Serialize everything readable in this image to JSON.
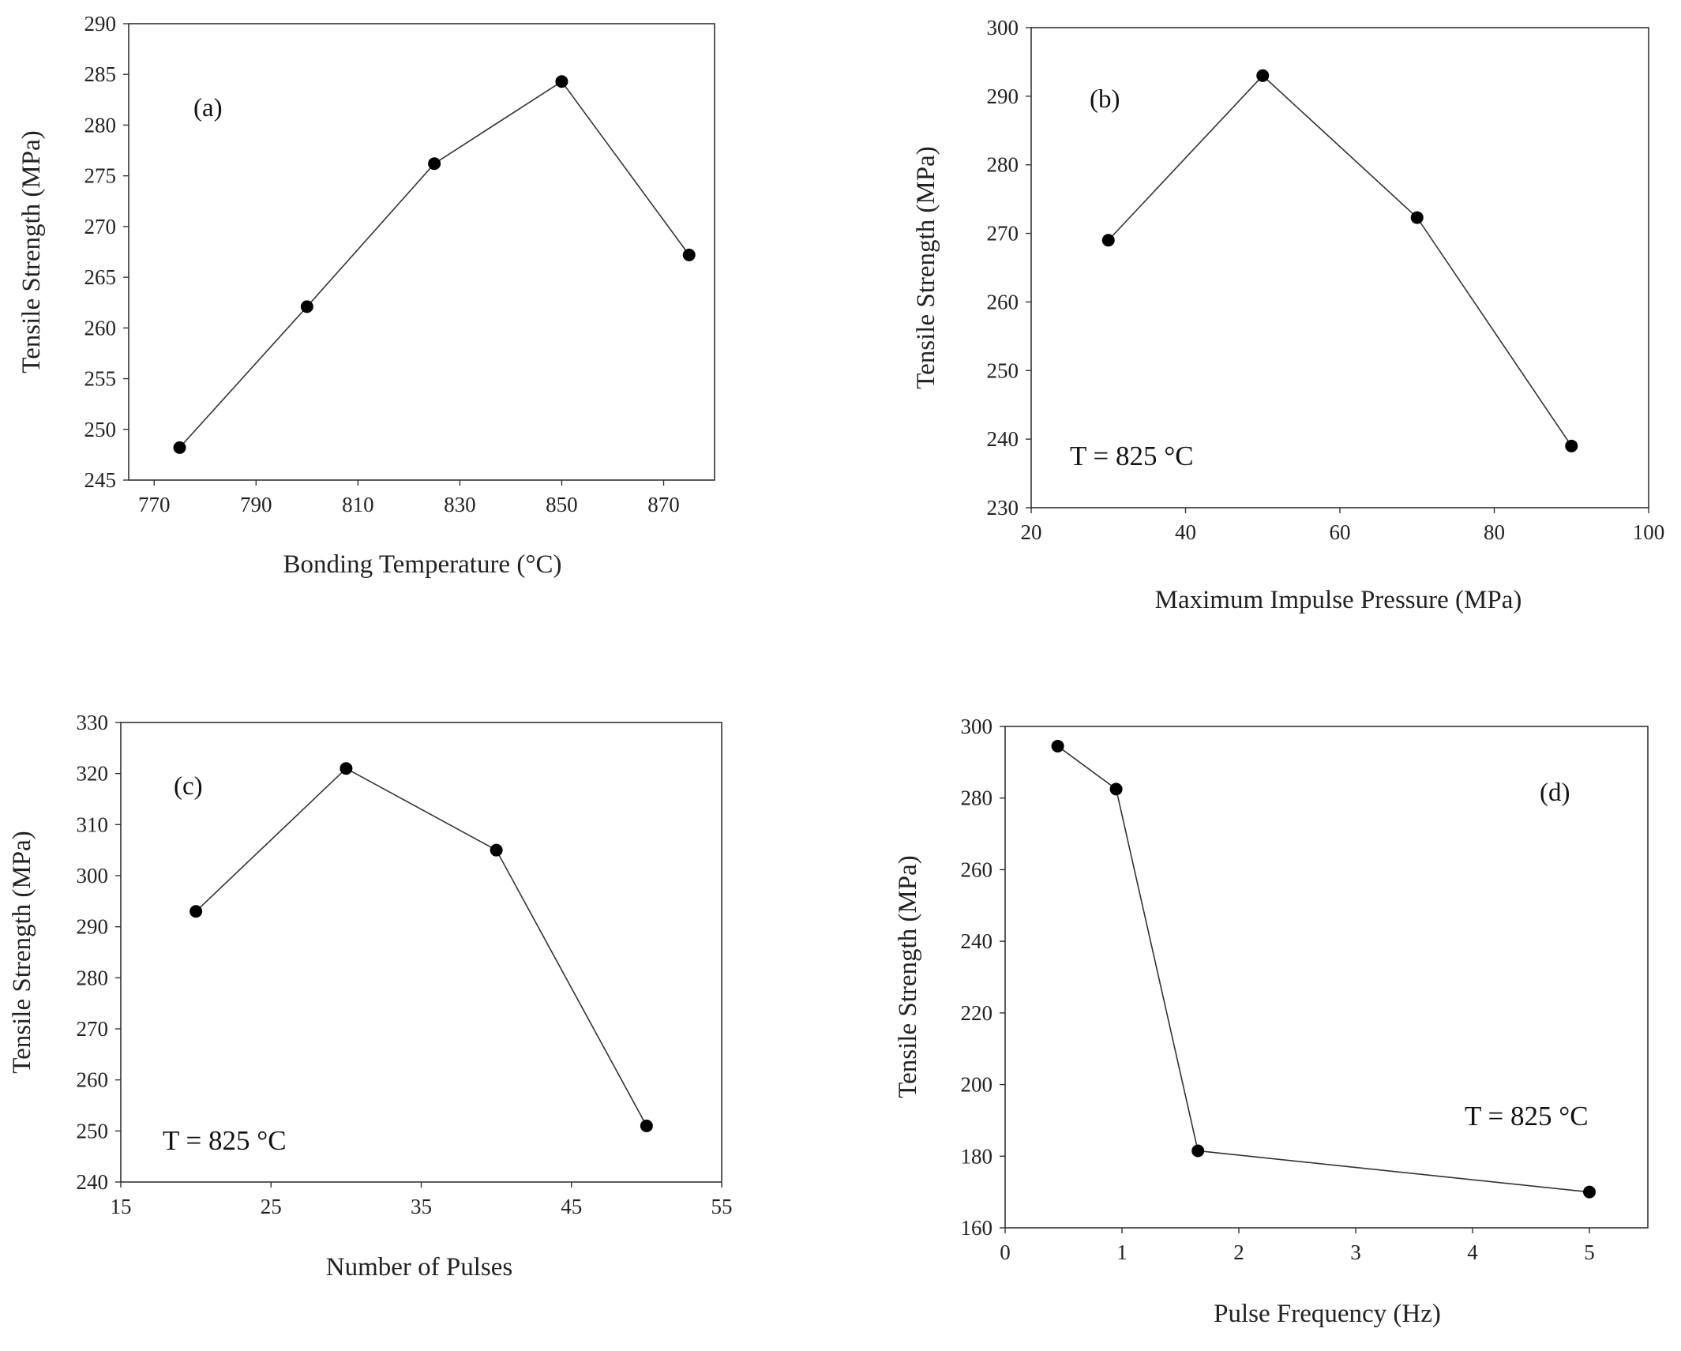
{
  "chart_data": [
    {
      "id": "a",
      "type": "line",
      "panel_label": "(a)",
      "annotation": "",
      "xlabel": "Bonding Temperature (°C)",
      "ylabel": "Tensile Strength (MPa)",
      "xlim": [
        765,
        880
      ],
      "ylim": [
        245,
        290
      ],
      "xticks": [
        770,
        790,
        810,
        830,
        850,
        870
      ],
      "yticks": [
        245,
        250,
        255,
        260,
        265,
        270,
        275,
        280,
        285,
        290
      ],
      "x": [
        775,
        800,
        825,
        850,
        875
      ],
      "y": [
        248.2,
        262.1,
        276.2,
        284.3,
        267.2
      ]
    },
    {
      "id": "b",
      "type": "line",
      "panel_label": "(b)",
      "annotation": "T = 825 °C",
      "xlabel": "Maximum Impulse Pressure (MPa)",
      "ylabel": "Tensile Strength (MPa)",
      "xlim": [
        20,
        100
      ],
      "ylim": [
        230,
        300
      ],
      "xticks": [
        20,
        40,
        60,
        80,
        100
      ],
      "yticks": [
        230,
        240,
        250,
        260,
        270,
        280,
        290,
        300
      ],
      "x": [
        30,
        50,
        70,
        90
      ],
      "y": [
        269,
        293,
        272.3,
        239
      ]
    },
    {
      "id": "c",
      "type": "line",
      "panel_label": "(c)",
      "annotation": "T = 825 °C",
      "xlabel": "Number of Pulses",
      "ylabel": "Tensile Strength (MPa)",
      "xlim": [
        15,
        55
      ],
      "ylim": [
        240,
        330
      ],
      "xticks": [
        15,
        25,
        35,
        45,
        55
      ],
      "yticks": [
        240,
        250,
        260,
        270,
        280,
        290,
        300,
        310,
        320,
        330
      ],
      "x": [
        20,
        30,
        40,
        50
      ],
      "y": [
        293,
        321,
        305,
        251
      ]
    },
    {
      "id": "d",
      "type": "line",
      "panel_label": "(d)",
      "annotation": "T = 825 °C",
      "xlabel": "Pulse Frequency (Hz)",
      "ylabel": "Tensile Strength (MPa)",
      "xlim": [
        0,
        5.5
      ],
      "ylim": [
        160,
        300
      ],
      "xticks": [
        0,
        1,
        2,
        3,
        4,
        5
      ],
      "yticks": [
        160,
        180,
        200,
        220,
        240,
        260,
        280,
        300
      ],
      "x": [
        0.45,
        0.95,
        1.65,
        5
      ],
      "y": [
        294.5,
        282.5,
        181.5,
        170
      ]
    }
  ]
}
